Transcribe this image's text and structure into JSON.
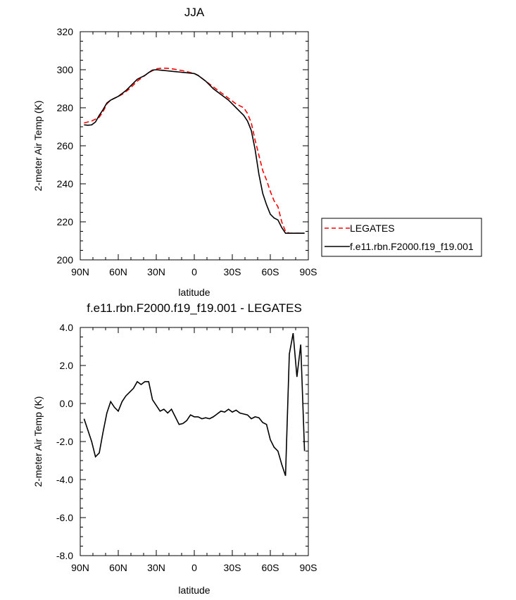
{
  "chart_data": [
    {
      "type": "line",
      "title": "JJA",
      "xlabel": "latitude",
      "ylabel": "2-meter Air Temp (K)",
      "xlim": [
        90,
        -90
      ],
      "ylim": [
        200,
        320
      ],
      "x_ticks": [
        90,
        60,
        30,
        0,
        -30,
        -60,
        -90
      ],
      "x_tick_labels": [
        "90N",
        "60N",
        "30N",
        "0",
        "30S",
        "60S",
        "90S"
      ],
      "y_ticks": [
        200,
        220,
        240,
        260,
        280,
        300,
        320
      ],
      "y_tick_labels": [
        "200",
        "220",
        "240",
        "260",
        "280",
        "300",
        "320"
      ],
      "legend_position": "right",
      "series": [
        {
          "name": "LEGATES",
          "color": "#ff0000",
          "dash": "dashed",
          "x": [
            87,
            84,
            81,
            78,
            75,
            72,
            69,
            66,
            63,
            60,
            57,
            54,
            51,
            48,
            45,
            42,
            39,
            36,
            33,
            30,
            27,
            24,
            21,
            18,
            15,
            12,
            9,
            6,
            3,
            0,
            -3,
            -6,
            -9,
            -12,
            -15,
            -18,
            -21,
            -24,
            -27,
            -30,
            -33,
            -36,
            -39,
            -42,
            -45,
            -48,
            -51,
            -54,
            -57,
            -60,
            -63,
            -66,
            -69,
            -72,
            -75,
            -78,
            -81,
            -84,
            -87
          ],
          "values": [
            272,
            272.5,
            273,
            274,
            275,
            278,
            282,
            284,
            285,
            286,
            287,
            288.5,
            290,
            292,
            294,
            295.5,
            297,
            298.5,
            299.5,
            300.5,
            300.7,
            300.8,
            300.7,
            300.5,
            300.2,
            299.8,
            299.5,
            299,
            298.5,
            298,
            297,
            295.5,
            294,
            292.5,
            291,
            289.5,
            288,
            286.5,
            285,
            283.5,
            282,
            281,
            280,
            277,
            272,
            263,
            255,
            247,
            242,
            236,
            231,
            228,
            220,
            215,
            214,
            214,
            214,
            214,
            214
          ]
        },
        {
          "name": "f.e11.rbn.F2000.f19_f19.001",
          "color": "#000000",
          "dash": "solid",
          "x": [
            87,
            84,
            81,
            78,
            75,
            72,
            69,
            66,
            63,
            60,
            57,
            54,
            51,
            48,
            45,
            42,
            39,
            36,
            33,
            30,
            27,
            24,
            21,
            18,
            15,
            12,
            9,
            6,
            3,
            0,
            -3,
            -6,
            -9,
            -12,
            -15,
            -18,
            -21,
            -24,
            -27,
            -30,
            -33,
            -36,
            -39,
            -42,
            -45,
            -48,
            -51,
            -54,
            -57,
            -60,
            -63,
            -66,
            -69,
            -72,
            -75,
            -78,
            -81,
            -84,
            -87
          ],
          "values": [
            271,
            270.8,
            271,
            272.5,
            276,
            279,
            282.5,
            284,
            285,
            286,
            287.5,
            289,
            291,
            293,
            295,
            296,
            297,
            298.5,
            299.8,
            300,
            299.8,
            299.6,
            299.4,
            299.2,
            299,
            298.8,
            298.6,
            298.4,
            298.2,
            298,
            297,
            295.5,
            294,
            292,
            290,
            288.5,
            287,
            285.5,
            284,
            282,
            280,
            278,
            276,
            273,
            268,
            258,
            245,
            235,
            229,
            224,
            222,
            221,
            217,
            214,
            214,
            214,
            214,
            214,
            214
          ]
        }
      ]
    },
    {
      "type": "line",
      "title": "f.e11.rbn.F2000.f19_f19.001 - LEGATES",
      "xlabel": "latitude",
      "ylabel": "2-meter Air Temp (K)",
      "xlim": [
        90,
        -90
      ],
      "ylim": [
        -8,
        4
      ],
      "x_ticks": [
        90,
        60,
        30,
        0,
        -30,
        -60,
        -90
      ],
      "x_tick_labels": [
        "90N",
        "60N",
        "30N",
        "0",
        "30S",
        "60S",
        "90S"
      ],
      "y_ticks": [
        -8,
        -6,
        -4,
        -2,
        0,
        2,
        4
      ],
      "y_tick_labels": [
        "-8.0",
        "-6.0",
        "-4.0",
        "-2.0",
        "0.0",
        "2.0",
        "4.0"
      ],
      "series": [
        {
          "color": "#000000",
          "dash": "solid",
          "x": [
            87,
            84,
            81,
            78,
            75,
            72,
            69,
            66,
            63,
            60,
            57,
            54,
            51,
            48,
            45,
            42,
            39,
            36,
            33,
            30,
            27,
            24,
            21,
            18,
            15,
            12,
            9,
            6,
            3,
            0,
            -3,
            -6,
            -9,
            -12,
            -15,
            -18,
            -21,
            -24,
            -27,
            -30,
            -33,
            -36,
            -39,
            -42,
            -45,
            -48,
            -51,
            -54,
            -57,
            -60,
            -63,
            -66,
            -69,
            -72,
            -75,
            -78,
            -81,
            -84,
            -87
          ],
          "values": [
            -0.8,
            -1.4,
            -2.0,
            -2.8,
            -2.6,
            -1.5,
            -0.5,
            0.1,
            -0.2,
            -0.4,
            0.1,
            0.4,
            0.6,
            0.8,
            1.15,
            1.0,
            1.15,
            1.15,
            0.2,
            -0.1,
            -0.4,
            -0.3,
            -0.5,
            -0.3,
            -0.7,
            -1.1,
            -1.05,
            -0.9,
            -0.6,
            -0.7,
            -0.7,
            -0.8,
            -0.75,
            -0.8,
            -0.7,
            -0.55,
            -0.4,
            -0.45,
            -0.3,
            -0.45,
            -0.35,
            -0.5,
            -0.55,
            -0.6,
            -0.8,
            -0.7,
            -0.75,
            -1.0,
            -1.1,
            -1.9,
            -2.3,
            -2.5,
            -3.2,
            -3.8,
            2.6,
            3.7,
            1.4,
            3.1,
            -2.5
          ]
        }
      ]
    }
  ]
}
